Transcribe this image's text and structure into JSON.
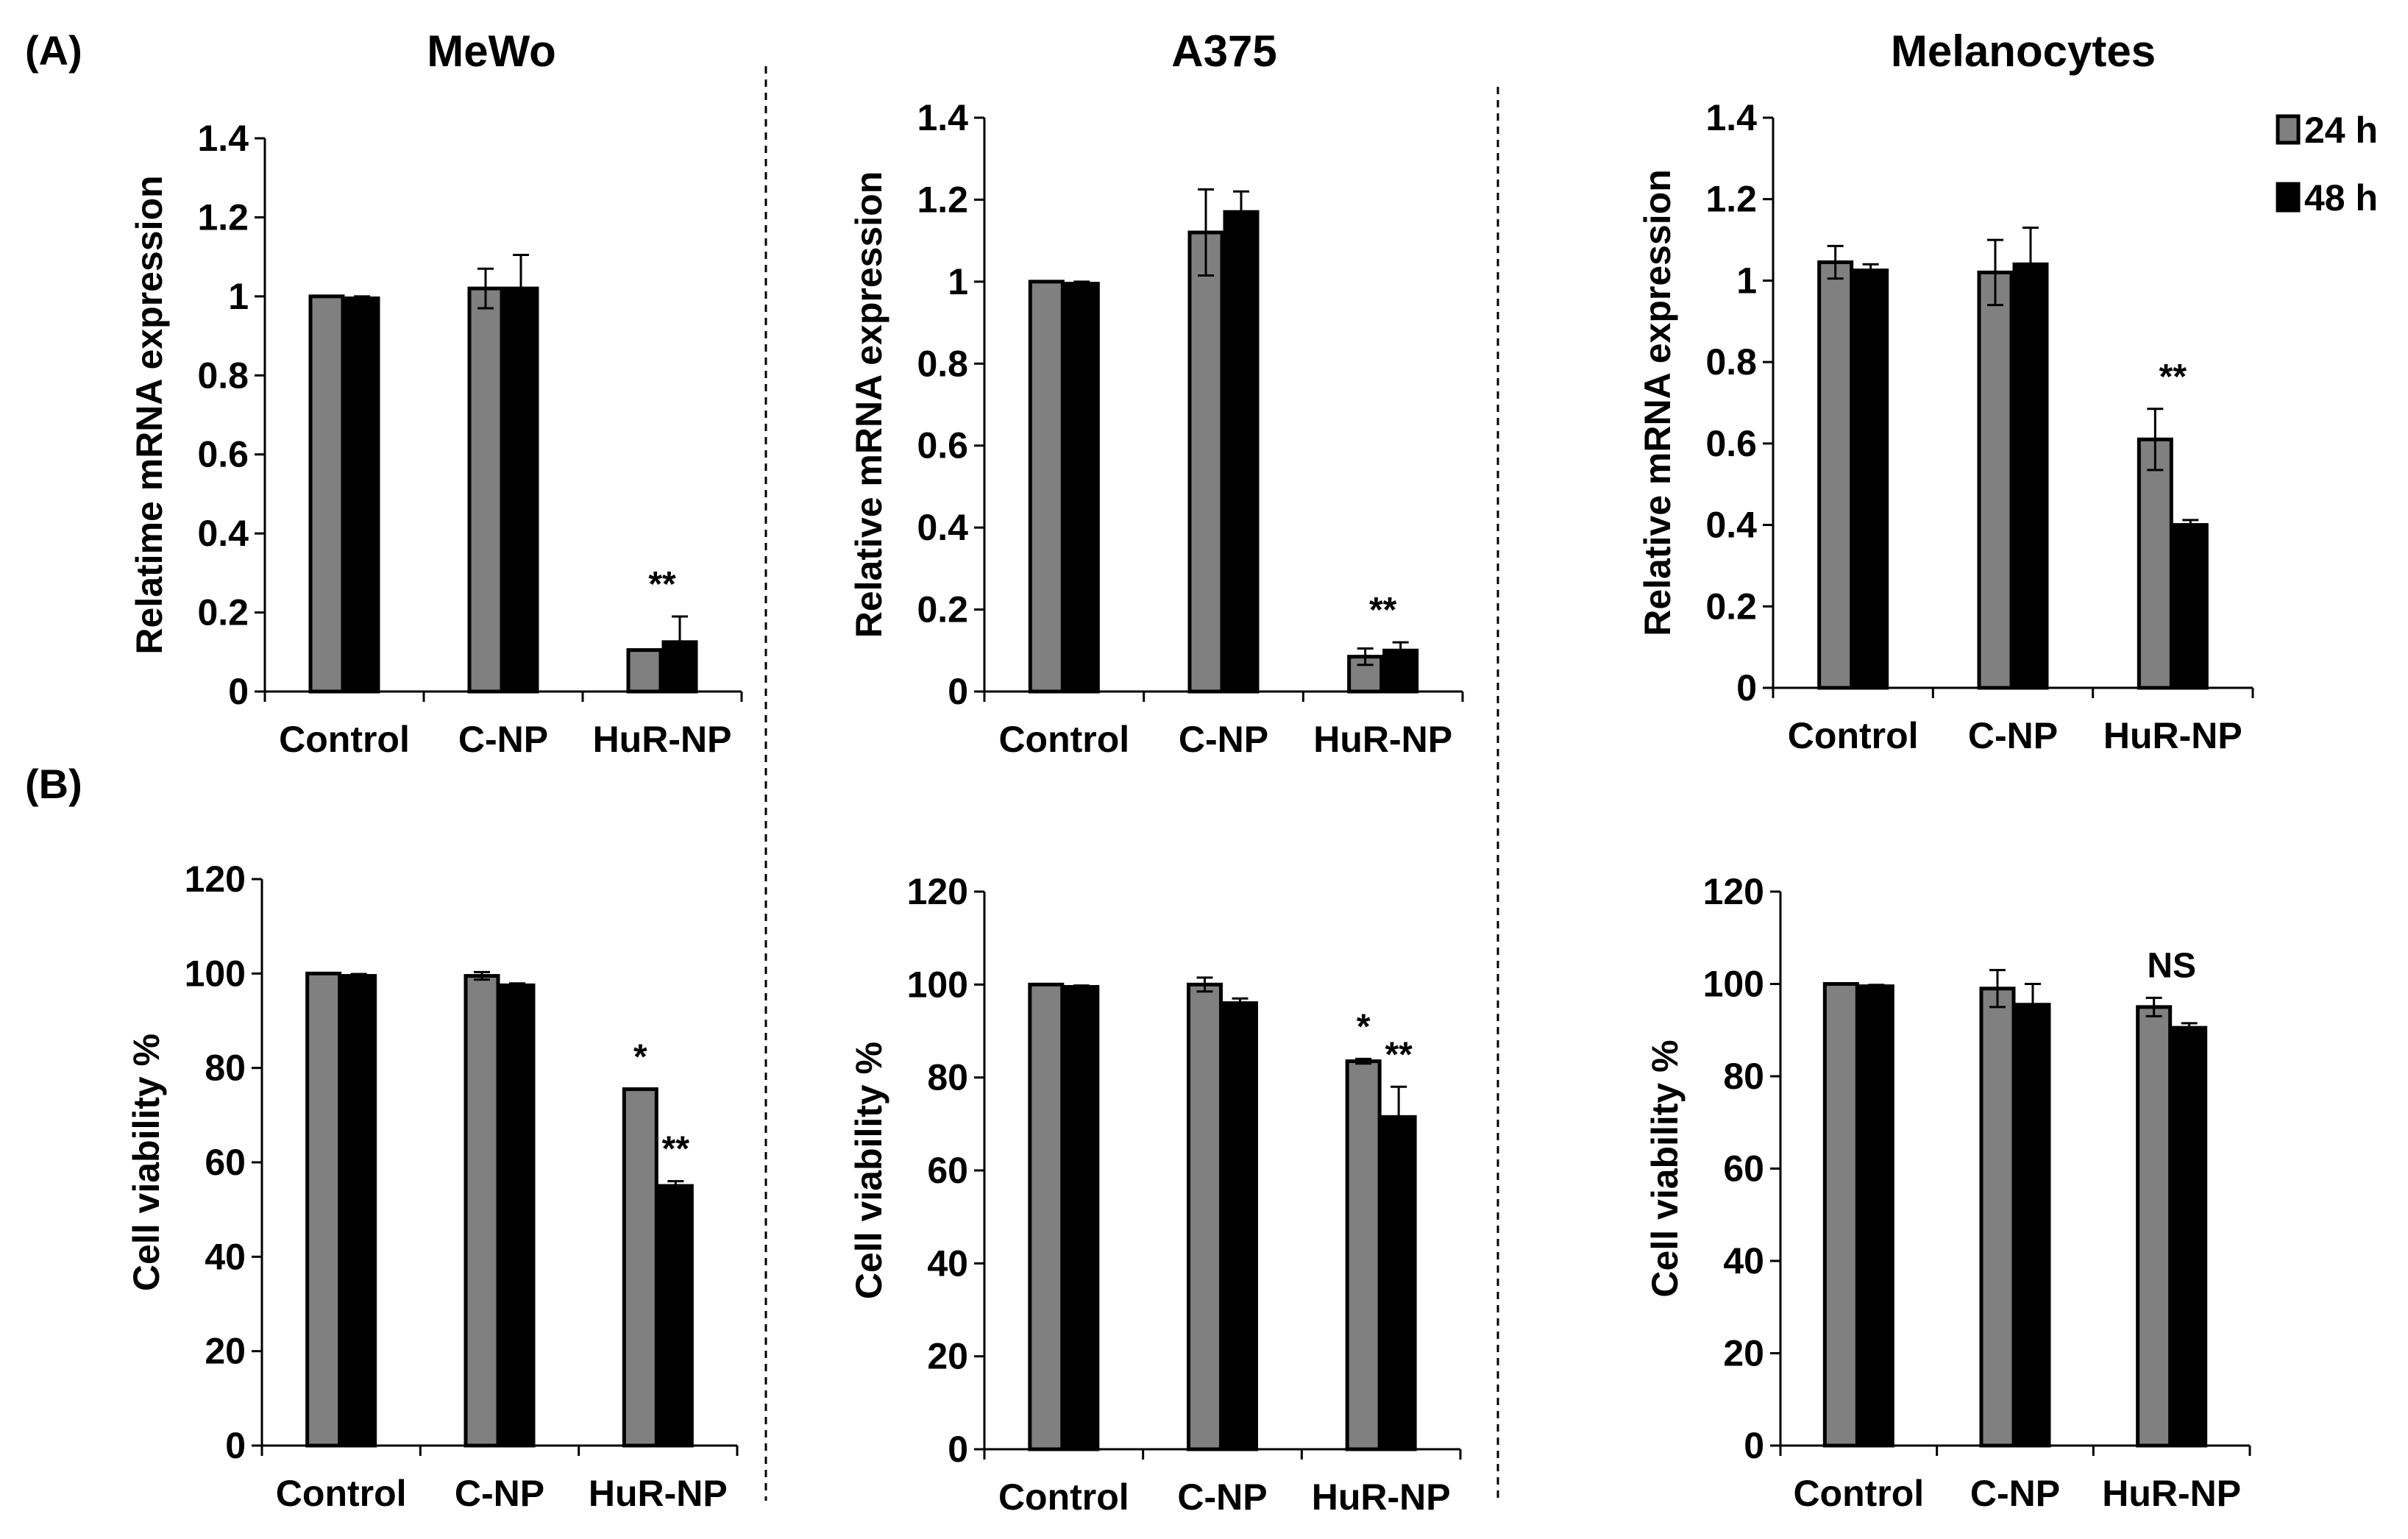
{
  "figure": {
    "panel_labels": [
      "(A)",
      "(B)"
    ],
    "column_titles": [
      "MeWo",
      "A375",
      "Melanocytes"
    ]
  },
  "legend": {
    "placement": "top-right",
    "items": [
      {
        "label": "24 h",
        "color": "#808080"
      },
      {
        "label": "48 h",
        "color": "#000000"
      }
    ]
  },
  "chart_data": [
    {
      "type": "bar",
      "panel": "A",
      "column": "MeWo",
      "ylabel": "Relatime mRNA expression",
      "categories": [
        "Control",
        "C-NP",
        "HuR-NP"
      ],
      "ylim": [
        0,
        1.4
      ],
      "yticks": [
        0,
        0.2,
        0.4,
        0.6,
        0.8,
        1,
        1.2,
        1.4
      ],
      "ytick_labels": [
        "0",
        "0.2",
        "0.4",
        "0.6",
        "0.8",
        "1",
        "1.2",
        "1.4"
      ],
      "series": [
        {
          "name": "24 h",
          "values": [
            1.0,
            1.02,
            0.105
          ],
          "errors": [
            0,
            0.05,
            0
          ]
        },
        {
          "name": "48 h",
          "values": [
            0.995,
            1.02,
            0.125
          ],
          "errors": [
            0.005,
            0.085,
            0.065
          ]
        }
      ],
      "annotations": [
        {
          "text": "**",
          "category": 2
        }
      ]
    },
    {
      "type": "bar",
      "panel": "A",
      "column": "A375",
      "ylabel": "Relative mRNA expression",
      "categories": [
        "Control",
        "C-NP",
        "HuR-NP"
      ],
      "ylim": [
        0,
        1.4
      ],
      "yticks": [
        0,
        0.2,
        0.4,
        0.6,
        0.8,
        1,
        1.2,
        1.4
      ],
      "ytick_labels": [
        "0",
        "0.2",
        "0.4",
        "0.6",
        "0.8",
        "1",
        "1.2",
        "1.4"
      ],
      "series": [
        {
          "name": "24 h",
          "values": [
            1.0,
            1.12,
            0.085
          ],
          "errors": [
            0,
            0.105,
            0.02
          ]
        },
        {
          "name": "48 h",
          "values": [
            0.995,
            1.17,
            0.1
          ],
          "errors": [
            0.005,
            0.05,
            0.02
          ]
        }
      ],
      "annotations": [
        {
          "text": "**",
          "category": 2
        }
      ]
    },
    {
      "type": "bar",
      "panel": "A",
      "column": "Melanocytes",
      "ylabel": "Relative mRNA expression",
      "categories": [
        "Control",
        "C-NP",
        "HuR-NP"
      ],
      "ylim": [
        0,
        1.4
      ],
      "yticks": [
        0,
        0.2,
        0.4,
        0.6,
        0.8,
        1,
        1.2,
        1.4
      ],
      "ytick_labels": [
        "0",
        "0.2",
        "0.4",
        "0.6",
        "0.8",
        "1",
        "1.2",
        "1.4"
      ],
      "series": [
        {
          "name": "24 h",
          "values": [
            1.045,
            1.02,
            0.61
          ],
          "errors": [
            0.04,
            0.08,
            0.075
          ]
        },
        {
          "name": "48 h",
          "values": [
            1.025,
            1.04,
            0.4
          ],
          "errors": [
            0.015,
            0.09,
            0.012
          ]
        }
      ],
      "annotations": [
        {
          "text": "**",
          "category": 2
        }
      ]
    },
    {
      "type": "bar",
      "panel": "B",
      "column": "MeWo",
      "ylabel": "Cell viability %",
      "categories": [
        "Control",
        "C-NP",
        "HuR-NP"
      ],
      "ylim": [
        0,
        120
      ],
      "yticks": [
        0,
        20,
        40,
        60,
        80,
        100,
        120
      ],
      "ytick_labels": [
        "0",
        "20",
        "40",
        "60",
        "80",
        "100",
        "120"
      ],
      "series": [
        {
          "name": "24 h",
          "values": [
            100,
            99.5,
            75.5
          ],
          "errors": [
            0,
            0.8,
            0
          ]
        },
        {
          "name": "48 h",
          "values": [
            99.5,
            97.5,
            55
          ],
          "errors": [
            0.4,
            0.4,
            1
          ]
        }
      ],
      "annotations": [
        {
          "text": "*",
          "category": 2,
          "series": 0
        },
        {
          "text": "**",
          "category": 2,
          "series": 1
        }
      ]
    },
    {
      "type": "bar",
      "panel": "B",
      "column": "A375",
      "ylabel": "Cell viability %",
      "categories": [
        "Control",
        "C-NP",
        "HuR-NP"
      ],
      "ylim": [
        0,
        120
      ],
      "yticks": [
        0,
        20,
        40,
        60,
        80,
        100,
        120
      ],
      "ytick_labels": [
        "0",
        "20",
        "40",
        "60",
        "80",
        "100",
        "120"
      ],
      "series": [
        {
          "name": "24 h",
          "values": [
            100,
            100,
            83.5
          ],
          "errors": [
            0,
            1.5,
            0.5
          ]
        },
        {
          "name": "48 h",
          "values": [
            99.5,
            96,
            71.5
          ],
          "errors": [
            0.3,
            1,
            6.5
          ]
        }
      ],
      "annotations": [
        {
          "text": "*",
          "category": 2,
          "series": 0
        },
        {
          "text": "**",
          "category": 2,
          "series": 1
        }
      ]
    },
    {
      "type": "bar",
      "panel": "B",
      "column": "Melanocytes",
      "ylabel": "Cell viability %",
      "categories": [
        "Control",
        "C-NP",
        "HuR-NP"
      ],
      "ylim": [
        0,
        120
      ],
      "yticks": [
        0,
        20,
        40,
        60,
        80,
        100,
        120
      ],
      "ytick_labels": [
        "0",
        "20",
        "40",
        "60",
        "80",
        "100",
        "120"
      ],
      "series": [
        {
          "name": "24 h",
          "values": [
            100,
            99,
            95
          ],
          "errors": [
            0,
            4,
            2
          ]
        },
        {
          "name": "48 h",
          "values": [
            99.5,
            95.5,
            90.5
          ],
          "errors": [
            0.3,
            4.5,
            1
          ]
        }
      ],
      "annotations": [
        {
          "text": "NS",
          "category": 2
        }
      ]
    }
  ]
}
